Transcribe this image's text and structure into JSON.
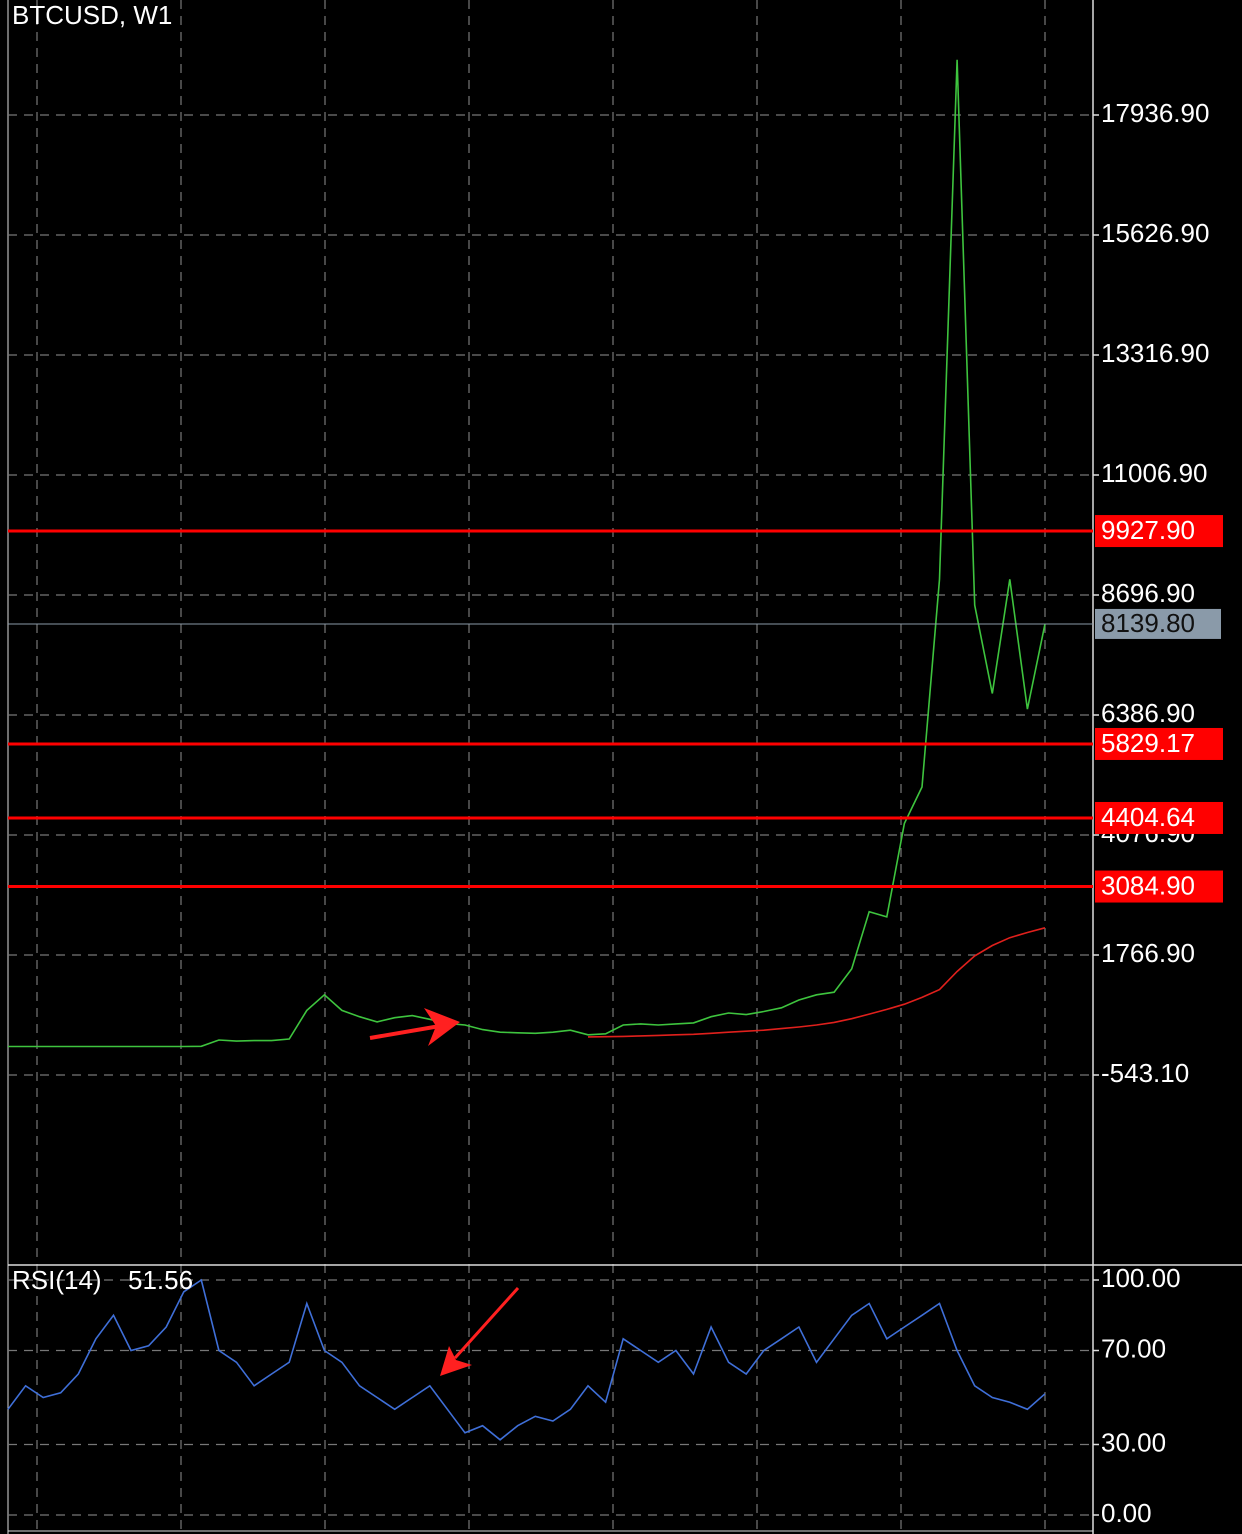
{
  "chart_data": [
    {
      "type": "line",
      "title": "BTCUSD, W1",
      "categories": [
        null,
        null,
        null,
        null,
        null,
        null,
        null,
        null,
        null,
        null,
        null,
        null,
        null,
        null,
        null,
        null,
        null,
        null,
        null,
        null,
        null,
        null,
        null,
        null,
        null,
        null,
        null,
        null,
        null,
        null,
        null,
        null,
        null,
        null,
        null,
        null,
        null,
        null,
        null,
        null,
        null,
        null,
        null,
        null,
        null,
        null,
        null,
        null,
        null,
        null,
        null,
        null,
        null,
        null,
        null,
        null,
        null,
        null,
        null,
        null
      ],
      "series": [
        {
          "color": "#3ec43e",
          "values": [
            5,
            5,
            5,
            5,
            5,
            5,
            5,
            5,
            5,
            5,
            5,
            10,
            130,
            110,
            120,
            120,
            150,
            700,
            1000,
            700,
            580,
            480,
            560,
            600,
            530,
            450,
            420,
            330,
            280,
            270,
            260,
            280,
            320,
            230,
            250,
            420,
            440,
            420,
            440,
            460,
            580,
            650,
            620,
            680,
            750,
            900,
            1000,
            1050,
            1500,
            2600,
            2500,
            4300,
            5000,
            9000,
            19000,
            8500,
            6800,
            9000,
            6500,
            8139.8
          ]
        },
        {
          "color": "#e0201c",
          "values": [
            null,
            null,
            null,
            null,
            null,
            null,
            null,
            null,
            null,
            null,
            null,
            null,
            null,
            null,
            null,
            null,
            null,
            null,
            null,
            null,
            null,
            null,
            null,
            null,
            null,
            null,
            null,
            null,
            null,
            null,
            null,
            null,
            null,
            190,
            195,
            200,
            210,
            220,
            230,
            240,
            260,
            280,
            300,
            320,
            350,
            380,
            420,
            470,
            540,
            630,
            720,
            820,
            950,
            1100,
            1450,
            1750,
            1950,
            2100,
            2200,
            2290
          ]
        }
      ],
      "ylim": [
        -4200.6,
        20150.65
      ],
      "yticks": [
        {
          "value": 17936.9,
          "label": "17936.90"
        },
        {
          "value": 15626.9,
          "label": "15626.90"
        },
        {
          "value": 13316.9,
          "label": "13316.90"
        },
        {
          "value": 11006.9,
          "label": "11006.90"
        },
        {
          "value": 8696.9,
          "label": "8696.90"
        },
        {
          "value": 6386.9,
          "label": "6386.90"
        },
        {
          "value": 4076.9,
          "label": "4076.90"
        },
        {
          "value": 1766.9,
          "label": "1766.90"
        },
        {
          "value": -543.1,
          "label": "-543.10"
        }
      ],
      "grid": true,
      "levels": [
        {
          "value": 9927.9,
          "label": "9927.90",
          "color": "#ff0000"
        },
        {
          "value": 5829.17,
          "label": "5829.17",
          "color": "#ff0000"
        },
        {
          "value": 4404.64,
          "label": "4404.64",
          "color": "#ff0000"
        },
        {
          "value": 3084.9,
          "label": "3084.90",
          "color": "#ff0000"
        }
      ],
      "last_price": {
        "value": 8139.8,
        "label": "8139.80",
        "color": "#8a9aa9"
      }
    },
    {
      "type": "line",
      "title": "RSI(14)",
      "series": [
        {
          "color": "#3f6fd8",
          "values": [
            45,
            55,
            50,
            52,
            60,
            75,
            85,
            70,
            72,
            80,
            95,
            100,
            70,
            65,
            55,
            60,
            65,
            90,
            70,
            65,
            55,
            50,
            45,
            50,
            55,
            45,
            35,
            38,
            32,
            38,
            42,
            40,
            45,
            55,
            48,
            75,
            70,
            65,
            70,
            60,
            80,
            65,
            60,
            70,
            75,
            80,
            65,
            75,
            85,
            90,
            75,
            80,
            85,
            90,
            70,
            55,
            50,
            48,
            45,
            51.56
          ]
        }
      ],
      "ylim": [
        0,
        100
      ],
      "yticks": [
        {
          "value": 100,
          "label": "100.00"
        },
        {
          "value": 70,
          "label": "70.00"
        },
        {
          "value": 30,
          "label": "30.00"
        },
        {
          "value": 0,
          "label": "0.00"
        }
      ],
      "grid": true
    }
  ]
}
